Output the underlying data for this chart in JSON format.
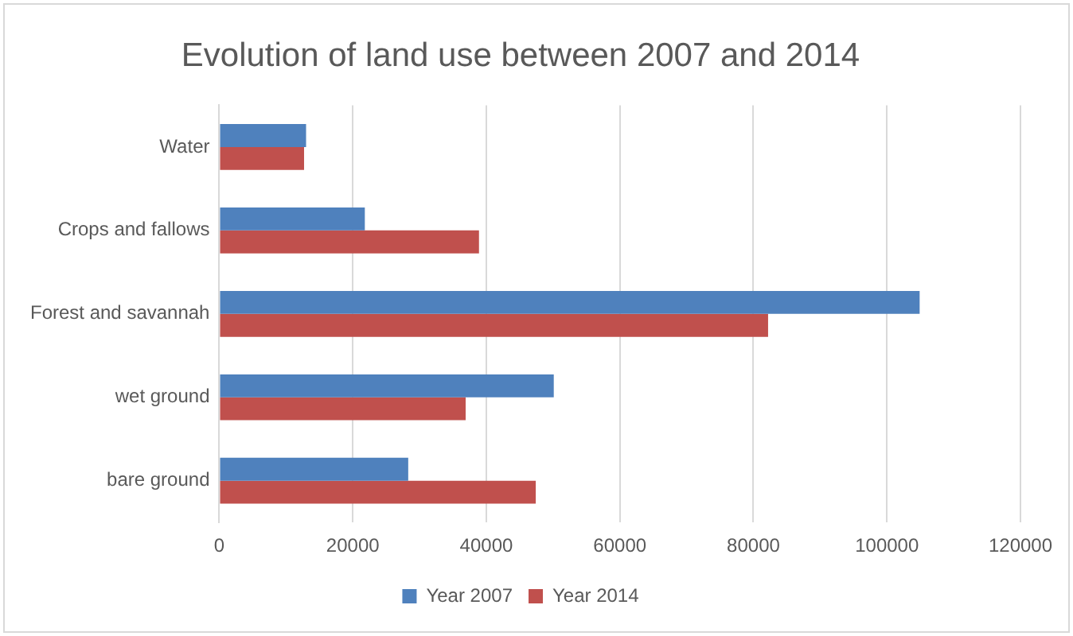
{
  "chart_data": {
    "type": "bar",
    "orientation": "horizontal",
    "title": "Evolution of land use between 2007 and 2014",
    "categories": [
      "Water",
      "Crops and fallows",
      "Forest and savannah",
      "wet ground",
      "bare ground"
    ],
    "series": [
      {
        "name": "Year 2007",
        "color": "#4f81bd",
        "values": [
          13000,
          21800,
          104900,
          50100,
          28300
        ]
      },
      {
        "name": "Year 2014",
        "color": "#c0504d",
        "values": [
          12700,
          38900,
          82200,
          36900,
          47400
        ]
      }
    ],
    "xlim": [
      0,
      120000
    ],
    "xticks": [
      0,
      20000,
      40000,
      60000,
      80000,
      100000,
      120000
    ],
    "grid": "x",
    "legend": "bottom"
  }
}
